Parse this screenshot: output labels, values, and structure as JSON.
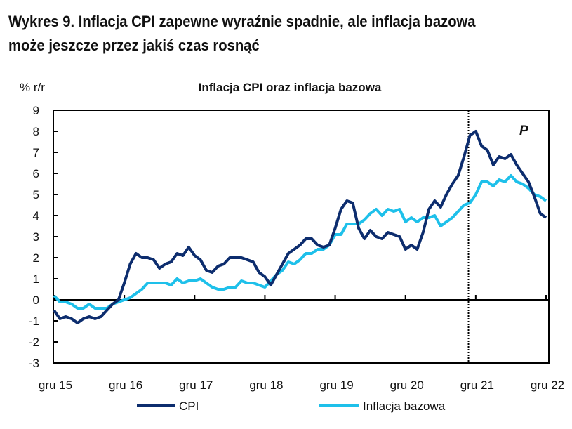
{
  "title_lines": [
    "Wykres 9. Inflacja CPI zapewne wyraźnie spadnie, ale inflacja bazowa",
    "może jeszcze przez jakiś czas rosnąć"
  ],
  "chart_data": {
    "type": "line",
    "title": "Inflacja CPI oraz inflacja bazowa",
    "ylabel": "% r/r",
    "xlabel": "",
    "ylim": [
      -3,
      9
    ],
    "yticks": [
      -3,
      -2,
      -1,
      0,
      1,
      2,
      3,
      4,
      5,
      6,
      7,
      8,
      9
    ],
    "xtick_labels": [
      "gru 15",
      "gru 16",
      "gru 17",
      "gru 18",
      "gru 19",
      "gru 20",
      "gru 21",
      "gru 22"
    ],
    "x_start": "2015-12",
    "x_end": "2022-12",
    "x_frequency": "monthly",
    "grid": false,
    "legend": "bottom",
    "annotation": {
      "text": "P",
      "marker": "dotted vertical line at 2021-11 separating data from forecast"
    },
    "series": [
      {
        "name": "CPI",
        "color": "#0d2d6e",
        "values": [
          -0.5,
          -0.9,
          -0.8,
          -0.9,
          -1.1,
          -0.9,
          -0.8,
          -0.9,
          -0.8,
          -0.5,
          -0.2,
          0.0,
          0.8,
          1.7,
          2.2,
          2.0,
          2.0,
          1.9,
          1.5,
          1.7,
          1.8,
          2.2,
          2.1,
          2.5,
          2.1,
          1.9,
          1.4,
          1.3,
          1.6,
          1.7,
          2.0,
          2.0,
          2.0,
          1.9,
          1.8,
          1.3,
          1.1,
          0.7,
          1.2,
          1.7,
          2.2,
          2.4,
          2.6,
          2.9,
          2.9,
          2.6,
          2.5,
          2.6,
          3.4,
          4.3,
          4.7,
          4.6,
          3.4,
          2.9,
          3.3,
          3.0,
          2.9,
          3.2,
          3.1,
          3.0,
          2.4,
          2.6,
          2.4,
          3.2,
          4.3,
          4.7,
          4.4,
          5.0,
          5.5,
          5.9,
          6.8,
          7.8,
          8.0,
          7.3,
          7.1,
          6.4,
          6.8,
          6.7,
          6.9,
          6.4,
          6.0,
          5.6,
          4.9,
          4.1,
          3.9
        ]
      },
      {
        "name": "Inflacja bazowa",
        "color": "#1ec0ea",
        "values": [
          0.2,
          -0.1,
          -0.1,
          -0.2,
          -0.4,
          -0.4,
          -0.2,
          -0.4,
          -0.4,
          -0.4,
          -0.2,
          -0.1,
          0.0,
          0.1,
          0.3,
          0.5,
          0.8,
          0.8,
          0.8,
          0.8,
          0.7,
          1.0,
          0.8,
          0.9,
          0.9,
          1.0,
          0.8,
          0.6,
          0.5,
          0.5,
          0.6,
          0.6,
          0.9,
          0.8,
          0.8,
          0.7,
          0.6,
          0.9,
          1.2,
          1.4,
          1.8,
          1.7,
          1.9,
          2.2,
          2.2,
          2.4,
          2.4,
          2.6,
          3.1,
          3.1,
          3.6,
          3.6,
          3.6,
          3.8,
          4.1,
          4.3,
          4.0,
          4.3,
          4.2,
          4.3,
          3.7,
          3.9,
          3.7,
          3.9,
          3.9,
          4.0,
          3.5,
          3.7,
          3.9,
          4.2,
          4.5,
          4.6,
          5.0,
          5.6,
          5.6,
          5.4,
          5.7,
          5.6,
          5.9,
          5.6,
          5.5,
          5.3,
          5.0,
          4.9,
          4.7
        ]
      }
    ]
  }
}
